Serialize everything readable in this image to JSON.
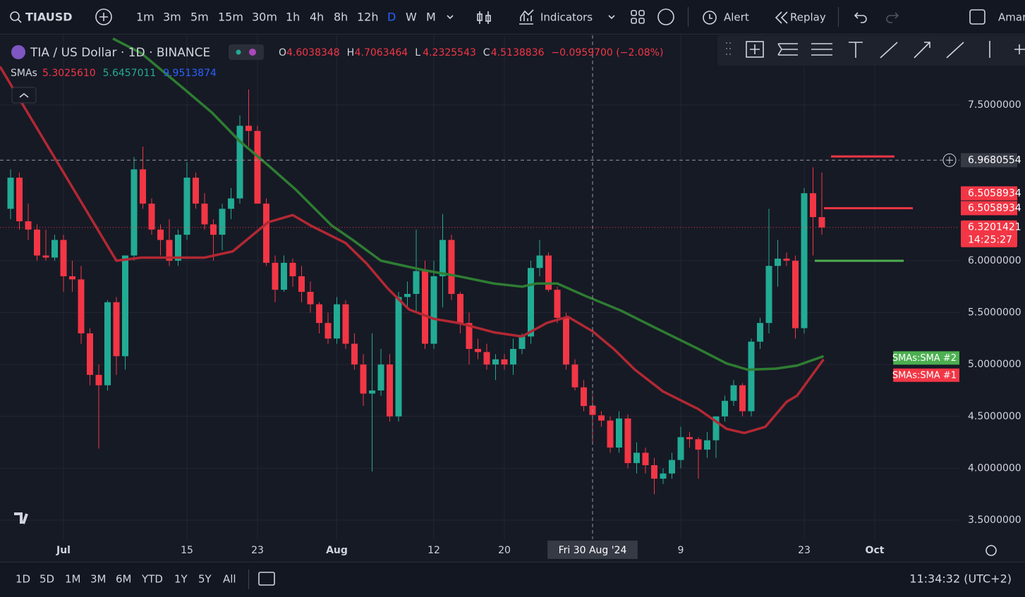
{
  "toolbar": {
    "symbol": "TIAUSD",
    "intervals": [
      "1m",
      "3m",
      "5m",
      "15m",
      "30m",
      "1h",
      "4h",
      "8h",
      "12h",
      "D",
      "W",
      "M"
    ],
    "active_interval": 9,
    "indicators": "Indicators",
    "alert": "Alert",
    "replay": "Replay",
    "account": "Amar"
  },
  "legend": {
    "title": "TIA / US Dollar · 1D · BINANCE",
    "ohlc_labels": [
      "O",
      "H",
      "L",
      "C"
    ],
    "change": "−0.0959700 (−2.08%)",
    "sma_label": "SMAs",
    "sma_values": [
      {
        "value": "5.3025610",
        "color": "#f23645"
      },
      {
        "value": 5.6457011,
        "color": "#22ab94"
      },
      {
        "value": 9.9513874,
        "color": "#2962ff"
      }
    ]
  },
  "chart_data": {
    "type": "candlestick",
    "up_color": "#22ab94",
    "down_color": "#f23645",
    "open": [
      6.5,
      6.8,
      6.38,
      6.3,
      6.05,
      6.03,
      6.2,
      5.85,
      5.82,
      5.3,
      4.9,
      4.8,
      5.6,
      5.08,
      6.05,
      6.88,
      6.55,
      6.3,
      6.2,
      6.0,
      6.25,
      6.8,
      6.55,
      6.35,
      6.25,
      6.5,
      6.6,
      7.3,
      7.25,
      6.55,
      5.98,
      5.72,
      5.98,
      5.85,
      5.7,
      5.58,
      5.4,
      5.25,
      5.58,
      5.2,
      5.0,
      4.72,
      4.75,
      5.0,
      4.5,
      5.65,
      5.68,
      5.9,
      5.2,
      5.85,
      6.2,
      5.68,
      5.4,
      5.15,
      5.12,
      5.0,
      5.05,
      5.0,
      5.15,
      5.27,
      5.93,
      6.05,
      5.72,
      5.45,
      5.0,
      4.78,
      4.6038348,
      4.51,
      4.46,
      4.2,
      4.48,
      4.05,
      4.15,
      4.03,
      3.9,
      3.95,
      4.08,
      4.3,
      4.28,
      4.18,
      4.27,
      4.5,
      4.65,
      4.8,
      4.55,
      5.22,
      5.4,
      5.95,
      6.02,
      6.0,
      5.35,
      6.65,
      6.42
    ],
    "high": [
      6.88,
      6.85,
      6.55,
      6.35,
      6.3,
      6.25,
      6.25,
      6.0,
      5.95,
      5.35,
      5.0,
      5.62,
      5.65,
      6.05,
      7.0,
      7.1,
      6.6,
      6.35,
      6.4,
      6.3,
      6.95,
      6.85,
      6.65,
      6.4,
      6.55,
      6.7,
      7.4,
      7.65,
      7.3,
      6.6,
      6.05,
      6.05,
      6.02,
      5.95,
      5.8,
      5.6,
      5.5,
      5.65,
      5.62,
      5.3,
      5.1,
      5.3,
      5.15,
      5.1,
      5.7,
      5.8,
      6.3,
      6.0,
      6.0,
      6.45,
      6.25,
      5.7,
      5.5,
      5.25,
      5.2,
      5.1,
      5.1,
      5.25,
      5.3,
      6.0,
      6.2,
      6.08,
      5.75,
      5.5,
      5.05,
      4.85,
      4.7063464,
      4.55,
      4.5,
      4.55,
      4.52,
      4.25,
      4.2,
      4.1,
      4.0,
      4.15,
      4.4,
      4.35,
      4.3,
      4.35,
      4.5,
      4.7,
      4.85,
      4.82,
      5.25,
      5.45,
      6.5,
      6.2,
      6.08,
      6.05,
      6.7,
      6.9,
      6.85
    ],
    "low": [
      6.4,
      6.3,
      6.2,
      6.0,
      6.0,
      6.0,
      5.7,
      5.7,
      5.2,
      4.8,
      4.19,
      4.75,
      4.9,
      4.95,
      6.0,
      6.5,
      6.25,
      6.05,
      5.95,
      5.95,
      6.2,
      6.5,
      6.3,
      6.0,
      6.1,
      6.4,
      6.55,
      7.1,
      6.55,
      5.95,
      5.6,
      5.7,
      5.75,
      5.6,
      5.5,
      5.3,
      5.2,
      5.2,
      5.15,
      4.95,
      4.6,
      3.97,
      4.7,
      4.45,
      4.45,
      5.55,
      5.5,
      5.15,
      5.15,
      5.55,
      5.62,
      5.3,
      5.0,
      5.05,
      4.95,
      4.85,
      4.95,
      4.9,
      5.1,
      5.2,
      5.85,
      5.7,
      5.4,
      4.95,
      4.75,
      4.55,
      4.2325543,
      4.4,
      4.15,
      4.15,
      4.0,
      3.95,
      3.95,
      3.75,
      3.85,
      3.9,
      4.0,
      4.2,
      3.9,
      4.1,
      4.1,
      4.45,
      4.6,
      4.5,
      4.5,
      5.15,
      5.3,
      5.75,
      5.95,
      5.25,
      5.3,
      6.05,
      6.25
    ],
    "close": [
      6.8,
      6.38,
      6.3,
      6.05,
      6.03,
      6.2,
      5.85,
      5.82,
      5.3,
      4.9,
      4.8,
      5.6,
      5.08,
      6.05,
      6.88,
      6.55,
      6.3,
      6.2,
      6.0,
      6.25,
      6.8,
      6.55,
      6.35,
      6.25,
      6.5,
      6.6,
      7.3,
      7.25,
      6.55,
      5.98,
      5.72,
      5.98,
      5.85,
      5.7,
      5.58,
      5.4,
      5.25,
      5.58,
      5.2,
      5.0,
      4.72,
      4.75,
      5.0,
      4.5,
      5.65,
      5.68,
      5.9,
      5.2,
      5.85,
      6.2,
      5.68,
      5.4,
      5.15,
      5.12,
      5.0,
      5.05,
      5.0,
      5.15,
      5.27,
      5.93,
      6.05,
      5.72,
      5.45,
      5.0,
      4.78,
      4.6,
      4.5138836,
      4.46,
      4.2,
      4.48,
      4.05,
      4.15,
      4.03,
      3.9,
      3.95,
      4.08,
      4.3,
      4.28,
      4.18,
      4.27,
      4.5,
      4.65,
      4.8,
      4.55,
      5.22,
      5.4,
      5.95,
      6.02,
      6.0,
      5.35,
      6.65,
      6.42,
      6.3201421
    ],
    "countdown": "14:25:27",
    "sma": [
      {
        "name": "SMAs:SMA #1",
        "color": "#b22833",
        "label_color": "#f23645",
        "x": [
          -1.2,
          12,
          14.8,
          22,
          25.2,
          29.2,
          32,
          34,
          38,
          40.4,
          42.8,
          45.2,
          48,
          50.8,
          54.8,
          58,
          60.8,
          63.2,
          66,
          68.4,
          70.8,
          74,
          78,
          81.2,
          83.2,
          85.6,
          88,
          89.2,
          92.2
        ],
        "values": [
          7.87,
          6.0,
          6.03,
          6.03,
          6.09,
          6.37,
          6.44,
          6.34,
          6.17,
          5.97,
          5.73,
          5.53,
          5.44,
          5.4,
          5.31,
          5.27,
          5.4,
          5.46,
          5.32,
          5.15,
          4.95,
          4.74,
          4.57,
          4.38,
          4.34,
          4.4,
          4.64,
          4.7,
          5.05
        ]
      },
      {
        "name": "SMAs:SMA #2",
        "color": "#2e7d32",
        "label_color": "#4caf50",
        "x": [
          11.6,
          14.8,
          19.6,
          22.8,
          26,
          29.2,
          32.4,
          36.4,
          38.8,
          42,
          46.8,
          50.8,
          54.8,
          58,
          59.6,
          62,
          65.2,
          69.2,
          73.2,
          78,
          81.2,
          83.6,
          86.8,
          89.2,
          92.2
        ],
        "values": [
          8.14,
          8.0,
          7.66,
          7.43,
          7.15,
          6.92,
          6.68,
          6.34,
          6.2,
          6.0,
          5.91,
          5.85,
          5.78,
          5.75,
          5.78,
          5.78,
          5.66,
          5.52,
          5.35,
          5.15,
          5.01,
          4.95,
          4.96,
          4.99,
          5.08
        ]
      }
    ],
    "price_labels": [
      6.5058934,
      6.5058934
    ],
    "crosshair": {
      "x": {
        "value": 66,
        "label": "Fri 30 Aug '24"
      },
      "y": 6.9680554
    },
    "xlim": [
      -1.2,
      107.6
    ],
    "ylim": [
      3.317,
      8.172
    ],
    "xticks": [
      {
        "value": 6,
        "label": "Jul"
      },
      {
        "value": 20,
        "label": "15"
      },
      {
        "value": 28,
        "label": "23"
      },
      {
        "value": 37,
        "label": "Aug"
      },
      {
        "value": 48,
        "label": "12"
      },
      {
        "value": 56,
        "label": "20"
      },
      {
        "value": 76,
        "label": "9"
      },
      {
        "value": 90,
        "label": "23"
      },
      {
        "value": 98,
        "label": "Oct"
      }
    ],
    "yticks": [
      {
        "value": 7.5,
        "label": "7.5000000"
      },
      {
        "value": 6.0,
        "label": "6.0000000"
      },
      {
        "value": 5.5,
        "label": "5.5000000"
      },
      {
        "value": 5.0,
        "label": "5.0000000"
      },
      {
        "value": 4.5,
        "label": "4.5000000"
      },
      {
        "value": 4.0,
        "label": "4.0000000"
      },
      {
        "value": 3.5,
        "label": "3.5000000"
      }
    ],
    "grid": true
  },
  "bottom": {
    "ranges": [
      "1D",
      "5D",
      "1M",
      "3M",
      "6M",
      "YTD",
      "1Y",
      "5Y",
      "All"
    ],
    "clock": "11:34:32 (UTC+2)"
  }
}
